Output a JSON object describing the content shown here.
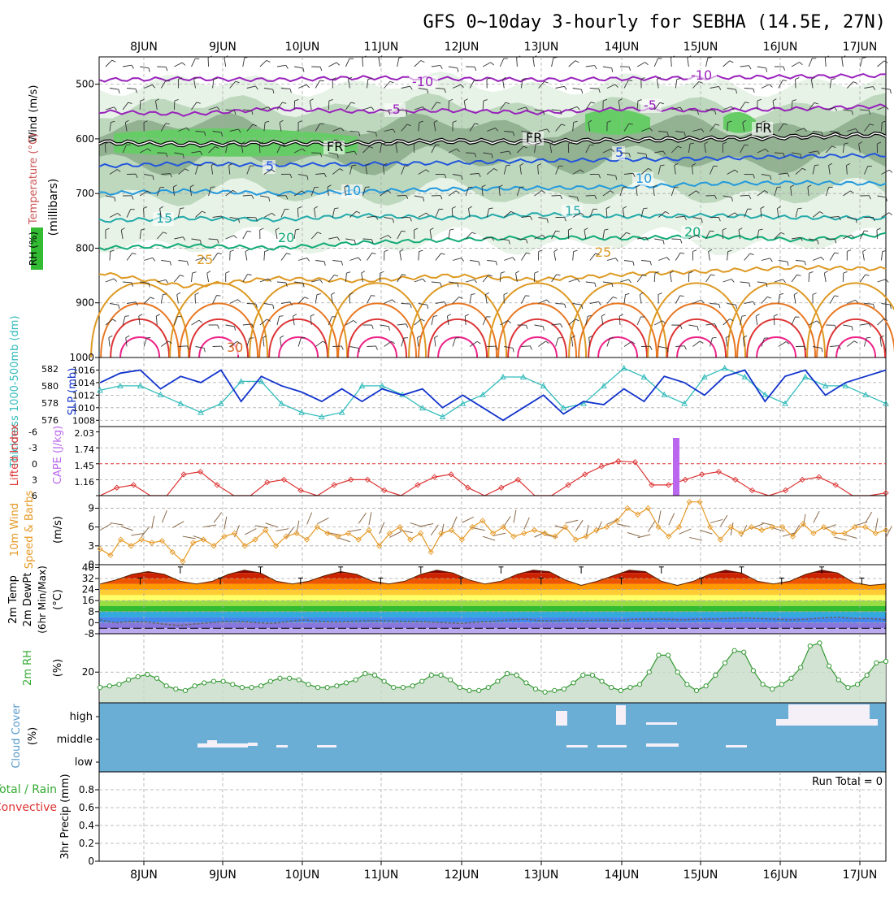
{
  "title": "GFS 0~10day 3-hourly for SEBHA (14.5E, 27N)",
  "days": [
    "8JUN",
    "9JUN",
    "10JUN",
    "11JUN",
    "12JUN",
    "13JUN",
    "14JUN",
    "15JUN",
    "16JUN",
    "17JUN"
  ],
  "colors": {
    "bg": "#ffffff",
    "grid": "#aaaaaa",
    "axis": "#000000",
    "rh_light": "#e6f2e6",
    "rh_mid": "#bcd6bc",
    "rh_dark": "#8fb08f",
    "rh_green": "#66cc66",
    "thickness": "#33bbbb",
    "slp": "#1133cc",
    "lifted": "#dd3333",
    "cape": "#bb66ee",
    "wind": "#e69926",
    "barb": "#8a6a4a",
    "temp_dark": "#991111",
    "dew": "#666666",
    "rh2m_line": "#339933",
    "rh2m_fill": "#c8dcc8",
    "cloud_bg": "#6aadd5",
    "cloud_block": "#f5f0f8",
    "precip_total": "#33aa33",
    "precip_conv": "#dd3333"
  },
  "panels": {
    "upper": {
      "y_title": "(millibars)",
      "left_labels": [
        "Wind (m/s)",
        "Temperature (°C)",
        "RH (%)"
      ],
      "pressure_ticks": [
        "500",
        "600",
        "700",
        "800",
        "900",
        "1000"
      ],
      "contour_labels": [
        {
          "text": "-10",
          "color": "#9922bb"
        },
        {
          "text": "-10",
          "color": "#9922bb"
        },
        {
          "text": "-5",
          "color": "#9922bb"
        },
        {
          "text": "-5",
          "color": "#9922bb"
        },
        {
          "text": "FR",
          "color": "#000000"
        },
        {
          "text": "FR",
          "color": "#000000"
        },
        {
          "text": "FR",
          "color": "#000000"
        },
        {
          "text": "5",
          "color": "#2255dd"
        },
        {
          "text": "5",
          "color": "#2255dd"
        },
        {
          "text": "10",
          "color": "#2299dd"
        },
        {
          "text": "10",
          "color": "#2299dd"
        },
        {
          "text": "15",
          "color": "#22aaaa"
        },
        {
          "text": "15",
          "color": "#22aaaa"
        },
        {
          "text": "20",
          "color": "#11aa77"
        },
        {
          "text": "20",
          "color": "#11aa77"
        },
        {
          "text": "25",
          "color": "#dd9922"
        },
        {
          "text": "25",
          "color": "#dd9922"
        },
        {
          "text": "30",
          "color": "#dd6622"
        }
      ]
    },
    "thickness_slp": {
      "left_label_1": "Thickness 1000-500mb (dm)",
      "left_label_2": "SLP (mb)",
      "thickness_ticks": [
        "582",
        "580",
        "578",
        "576"
      ],
      "slp_ticks": [
        "1016",
        "1014",
        "1012",
        "1010",
        "1008"
      ]
    },
    "cape_li": {
      "left_label_1": "Lifted Index",
      "left_label_2": "CAPE (J/kg)",
      "li_ticks": [
        "-6",
        "-3",
        "0",
        "3",
        "6"
      ],
      "cape_ticks": [
        "2.03",
        "1.74",
        "1.45",
        "1.16"
      ]
    },
    "wind10m": {
      "left_label_1": "10m Wind",
      "left_label_2": "Speed & Barbs",
      "unit": "(m/s)",
      "ticks": [
        "9",
        "6",
        "3",
        "0"
      ]
    },
    "temp2m": {
      "left_label_1": "2m Temp",
      "left_label_2": "2m DewPt",
      "left_label_3": "(6hr Min/Max)",
      "unit": "(°C)",
      "ticks": [
        "40",
        "32",
        "24",
        "16",
        "8",
        "0",
        "-8"
      ]
    },
    "rh2m": {
      "left_label": "2m RH",
      "unit": "(%)",
      "ticks": [
        "20"
      ]
    },
    "cloud": {
      "left_label": "Cloud Cover",
      "unit": "(%)",
      "levels": [
        "high",
        "middle",
        "low"
      ]
    },
    "precip": {
      "left_label_1": "Total / Rain",
      "left_label_2": "Convective",
      "axis_label": "3hr Precip (mm)",
      "ticks": [
        "0.8",
        "0.6",
        "0.4",
        "0.2",
        "0"
      ],
      "run_total": "Run Total = 0"
    }
  },
  "chart_data": [
    {
      "type": "line",
      "title": "GFS 0~10day 3-hourly for SEBHA (14.5E, 27N)",
      "xlabel": "",
      "ylabel": "(millibars)",
      "x_categories": [
        "8JUN",
        "9JUN",
        "10JUN",
        "11JUN",
        "12JUN",
        "13JUN",
        "14JUN",
        "15JUN",
        "16JUN",
        "17JUN"
      ],
      "ylim": [
        1000,
        450
      ],
      "y_scale": "pressure",
      "series": [
        {
          "name": "-10",
          "values": [
            492,
            490,
            492,
            488,
            490,
            492,
            490,
            488,
            486,
            484
          ]
        },
        {
          "name": "-5",
          "values": [
            550,
            555,
            545,
            550,
            548,
            552,
            545,
            548,
            545,
            540
          ]
        },
        {
          "name": "FR",
          "values": [
            606,
            610,
            608,
            608,
            604,
            606,
            602,
            600,
            596,
            592
          ]
        },
        {
          "name": "5",
          "values": [
            650,
            645,
            648,
            646,
            644,
            640,
            638,
            636,
            632,
            630
          ]
        },
        {
          "name": "10",
          "values": [
            700,
            695,
            700,
            696,
            692,
            690,
            688,
            682,
            680,
            682
          ]
        },
        {
          "name": "15",
          "values": [
            750,
            745,
            748,
            740,
            745,
            738,
            742,
            740,
            744,
            745
          ]
        },
        {
          "name": "20",
          "values": [
            800,
            795,
            800,
            790,
            785,
            780,
            782,
            778,
            785,
            775
          ]
        },
        {
          "name": "25",
          "values": [
            845,
            870,
            855,
            860,
            850,
            858,
            848,
            842,
            835,
            838
          ]
        }
      ]
    },
    {
      "type": "line",
      "xlabel": "",
      "ylabel": "SLP (mb)",
      "ylim": [
        1007,
        1018
      ],
      "series": [
        {
          "name": "SLP",
          "values": [
            1014,
            1015.5,
            1016,
            1013,
            1015,
            1014,
            1016,
            1011,
            1015,
            1013.5,
            1012.5,
            1011,
            1013,
            1011,
            1013,
            1012,
            1013,
            1010,
            1012,
            1010,
            1008,
            1010,
            1012,
            1009,
            1011,
            1010.5,
            1013,
            1011,
            1015,
            1014,
            1012,
            1015,
            1016,
            1011,
            1015,
            1016,
            1012,
            1014,
            1015,
            1016
          ]
        },
        {
          "name": "Thickness",
          "values": [
            579.5,
            580,
            580,
            579,
            578,
            577,
            578,
            580.5,
            580.5,
            578,
            577,
            576.5,
            577,
            580,
            580,
            579,
            577.5,
            576.5,
            578,
            579,
            581,
            581,
            580,
            577.5,
            578,
            580,
            582,
            581,
            579,
            578,
            581,
            582,
            581,
            579,
            578,
            581,
            580,
            580,
            579,
            578
          ]
        }
      ]
    },
    {
      "type": "line",
      "xlabel": "",
      "ylabel": "Lifted Index",
      "ylim": [
        6,
        -6
      ],
      "series": [
        {
          "name": "Lifted Index",
          "values": [
            6,
            4.5,
            4,
            6,
            6,
            2,
            1.5,
            4,
            6,
            6,
            3.5,
            3,
            5,
            6,
            4,
            3,
            3,
            5,
            6,
            4,
            2.5,
            2,
            4.5,
            6,
            4.5,
            3,
            6,
            6,
            4,
            2,
            0.5,
            -0.5,
            -0.3,
            4,
            4,
            3,
            2,
            1.5,
            3,
            5,
            6,
            5,
            3,
            2.5,
            4,
            6,
            6,
            5.5
          ]
        },
        {
          "name": "CAPE",
          "values": [
            0,
            0,
            0,
            0,
            0,
            0,
            0,
            0,
            0,
            0,
            0,
            0,
            0,
            0,
            0,
            0,
            0,
            0,
            0,
            0,
            0,
            0,
            0,
            0,
            0,
            0,
            0,
            0,
            0,
            0,
            2.03,
            0,
            0,
            0,
            0,
            0,
            0,
            0,
            0,
            0,
            0
          ]
        }
      ]
    },
    {
      "type": "line",
      "xlabel": "",
      "ylabel": "Speed & Barbs (m/s)",
      "ylim": [
        0,
        11
      ],
      "series": [
        {
          "name": "Wind Speed",
          "values": [
            2.5,
            1.5,
            4,
            3,
            4,
            3.5,
            3.8,
            2,
            0.5,
            3.5,
            4,
            3,
            4.5,
            5,
            3,
            4,
            5.5,
            3,
            4.5,
            5,
            4,
            6,
            5,
            4.5,
            5,
            4,
            5.5,
            3,
            5,
            6,
            4,
            5,
            2,
            5,
            5.5,
            4,
            6,
            7,
            5,
            6,
            4.5,
            5,
            5.5,
            5,
            4.5,
            6,
            4,
            4.5,
            5.5,
            6,
            7,
            9,
            8,
            9,
            6,
            4.5,
            6,
            10,
            10,
            6,
            4,
            6,
            5,
            6,
            5.5,
            6,
            6,
            4.5,
            6.5,
            5,
            6,
            5,
            5,
            6,
            6,
            5,
            5.5
          ]
        }
      ]
    },
    {
      "type": "area",
      "xlabel": "",
      "ylabel": "(°C)",
      "ylim": [
        -8,
        42
      ],
      "series": [
        {
          "name": "2m Temp",
          "values": [
            28,
            31,
            35,
            37,
            35,
            30,
            28,
            30,
            35,
            38,
            36,
            30,
            28,
            30,
            34,
            37,
            35,
            30,
            28,
            30,
            35,
            38,
            36,
            31,
            28,
            30,
            35,
            38,
            37,
            31,
            27,
            30,
            34,
            38,
            37,
            30,
            27,
            30,
            35,
            38,
            36,
            30,
            28,
            30,
            35,
            38,
            36,
            29,
            27,
            28
          ]
        },
        {
          "name": "2m DewPt",
          "values": [
            2,
            0,
            1,
            0.5,
            -1,
            -2,
            -1,
            0,
            1,
            1,
            0,
            -0.5,
            1,
            2,
            1,
            0.5,
            1,
            1.5,
            1.5,
            1,
            1,
            0.5,
            0,
            -0.5,
            0.5,
            1,
            2,
            2.5,
            1.5,
            1.5,
            2,
            1.5,
            2,
            1.5,
            2.5,
            2.5,
            2.5,
            2,
            2.5,
            2.5,
            3,
            3.5,
            3,
            2.5,
            2,
            2.5,
            3.5,
            4,
            3,
            3,
            2
          ]
        }
      ]
    },
    {
      "type": "area",
      "xlabel": "",
      "ylabel": "(%)",
      "ylim": [
        0,
        45
      ],
      "series": [
        {
          "name": "2m RH",
          "values": [
            10,
            11,
            12,
            15,
            17,
            18.5,
            16,
            11,
            9,
            8,
            11,
            13,
            14,
            14,
            12,
            10,
            10,
            11,
            14,
            16,
            16,
            15,
            12,
            10,
            10,
            11,
            13,
            15,
            19,
            18,
            14,
            10,
            10,
            11,
            14,
            18,
            18,
            15,
            10,
            8,
            8,
            10,
            14,
            19,
            18,
            13,
            9,
            7,
            8,
            9,
            13,
            18,
            18,
            14,
            10,
            8,
            10,
            12,
            20,
            31,
            31,
            20,
            12,
            8,
            11,
            18,
            26,
            34,
            33,
            21,
            12,
            9,
            12,
            16,
            23,
            37,
            39,
            24,
            15,
            10,
            12,
            18,
            26,
            27
          ]
        }
      ]
    },
    {
      "type": "bar",
      "xlabel": "",
      "ylabel": "Cloud Cover (%)",
      "categories": [
        "high",
        "middle",
        "low"
      ],
      "series": [
        {
          "name": "Cloud Cover",
          "values": [
            0,
            0,
            0
          ]
        }
      ]
    },
    {
      "type": "bar",
      "xlabel": "",
      "ylabel": "3hr Precip (mm)",
      "ylim": [
        0,
        1
      ],
      "series": [
        {
          "name": "3hr Precip",
          "values": [
            0,
            0,
            0,
            0,
            0,
            0,
            0,
            0,
            0,
            0
          ]
        }
      ],
      "annotations": [
        "Run Total = 0"
      ]
    }
  ]
}
